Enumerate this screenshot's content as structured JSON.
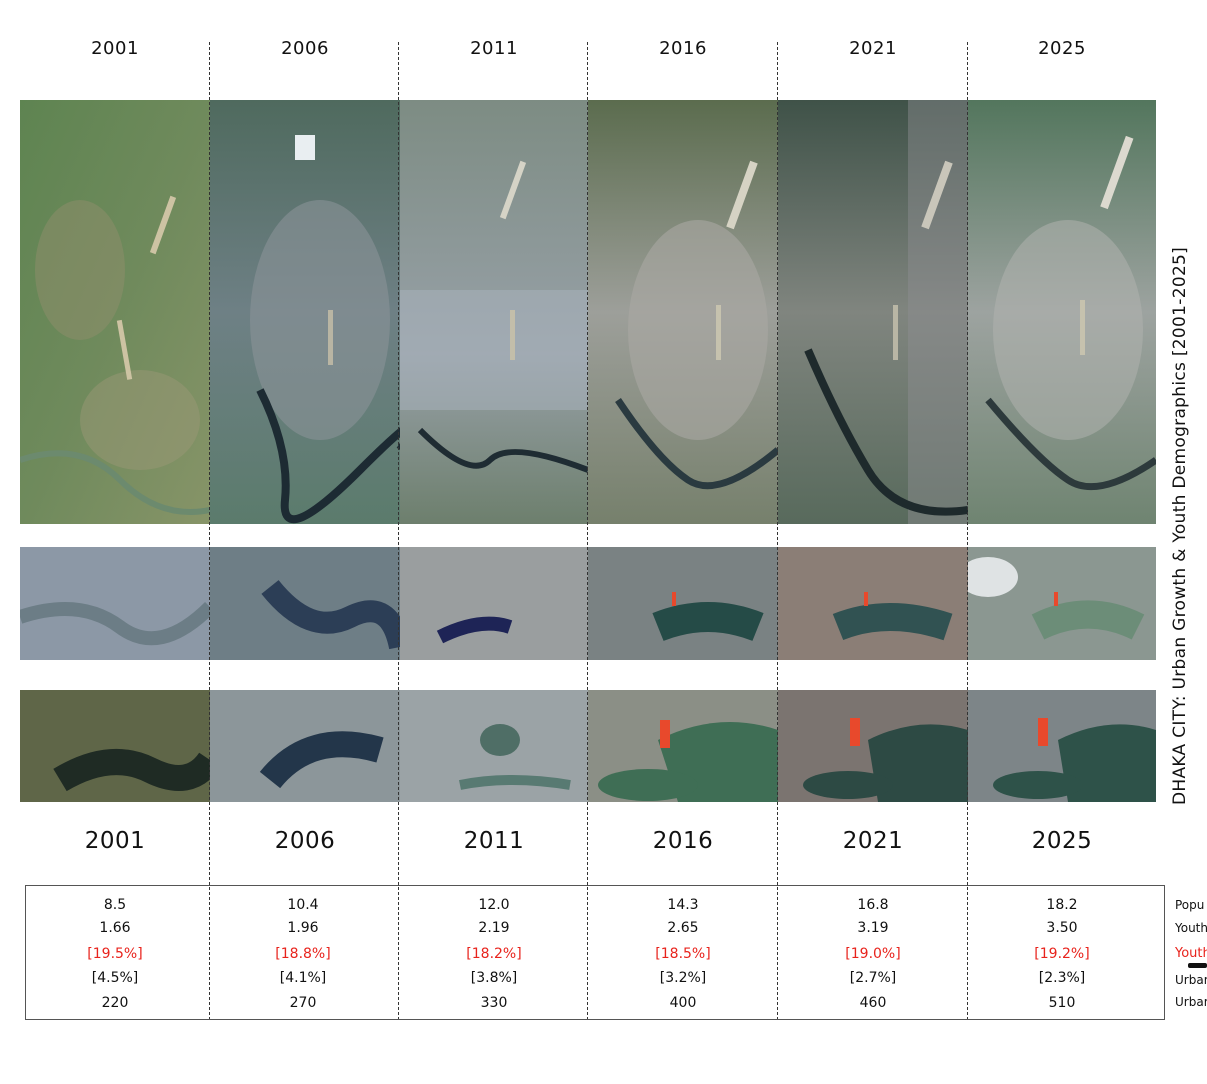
{
  "years": [
    "2001",
    "2006",
    "2011",
    "2016",
    "2021",
    "2025"
  ],
  "title": "DHAKA CITY:  Urban Growth & Youth Demographics  [2001-2025]",
  "rows": {
    "population": [
      "8.5",
      "10.4",
      "12.0",
      "14.3",
      "16.8",
      "18.2"
    ],
    "youth": [
      "1.66",
      "1.96",
      "2.19",
      "2.65",
      "3.19",
      "3.50"
    ],
    "youth_pct": [
      "[19.5%]",
      "[18.8%]",
      "[18.2%]",
      "[18.5%]",
      "[19.0%]",
      "[19.2%]"
    ],
    "urban_pct": [
      "[4.5%]",
      "[4.1%]",
      "[3.8%]",
      "[3.2%]",
      "[2.7%]",
      "[2.3%]"
    ],
    "urban_area": [
      "220",
      "270",
      "330",
      "400",
      "460",
      "510"
    ]
  },
  "legend": {
    "population": "Popu",
    "youth": "Youth",
    "youth_pct": "Youth",
    "urban_pct": "Urbar",
    "urban_area": "Urbar"
  },
  "colors": {
    "accent_red": "#e8231c",
    "text": "#111111"
  }
}
